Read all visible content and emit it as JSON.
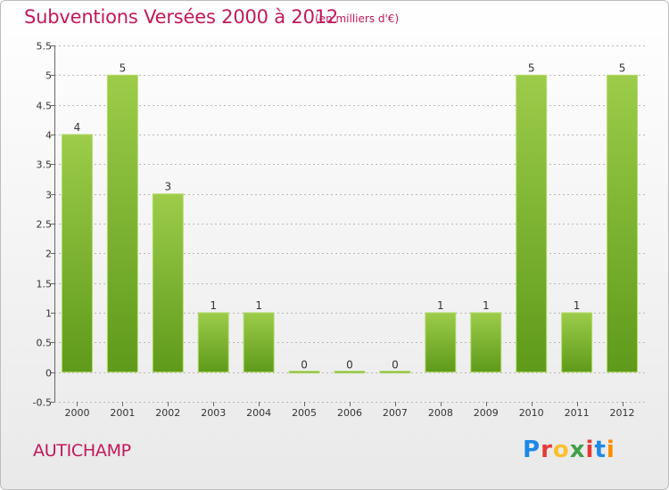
{
  "header": {
    "title": "Subventions Versées 2000 à 2012",
    "subtitle": "(en milliers d'€)"
  },
  "footer": {
    "commune": "AUTICHAMP",
    "logo_text": "Proxiti"
  },
  "colors": {
    "title": "#c2185b",
    "bar_top": "#9ccc4a",
    "bar_bottom": "#5f9a1a",
    "grid": "#b8b8b8"
  },
  "chart_data": {
    "type": "bar",
    "categories": [
      "2000",
      "2001",
      "2002",
      "2003",
      "2004",
      "2005",
      "2006",
      "2007",
      "2008",
      "2009",
      "2010",
      "2011",
      "2012"
    ],
    "values": [
      4,
      5,
      3,
      1,
      1,
      0,
      0,
      0,
      1,
      1,
      5,
      1,
      5
    ],
    "value_labels": [
      "4",
      "5",
      "3",
      "1",
      "1",
      "0",
      "0",
      "0",
      "1",
      "1",
      "5",
      "1",
      "5"
    ],
    "title": "Subventions Versées 2000 à 2012",
    "xlabel": "",
    "ylabel": "",
    "ylim": [
      -0.5,
      5.5
    ],
    "yticks": [
      -0.5,
      0,
      0.5,
      1,
      1.5,
      2,
      2.5,
      3,
      3.5,
      4,
      4.5,
      5,
      5.5
    ],
    "ytick_labels": [
      "-0.5",
      "0",
      "0.5",
      "1",
      "1.5",
      "2",
      "2.5",
      "3",
      "3.5",
      "4",
      "4.5",
      "5",
      "5.5"
    ],
    "grid": true
  }
}
